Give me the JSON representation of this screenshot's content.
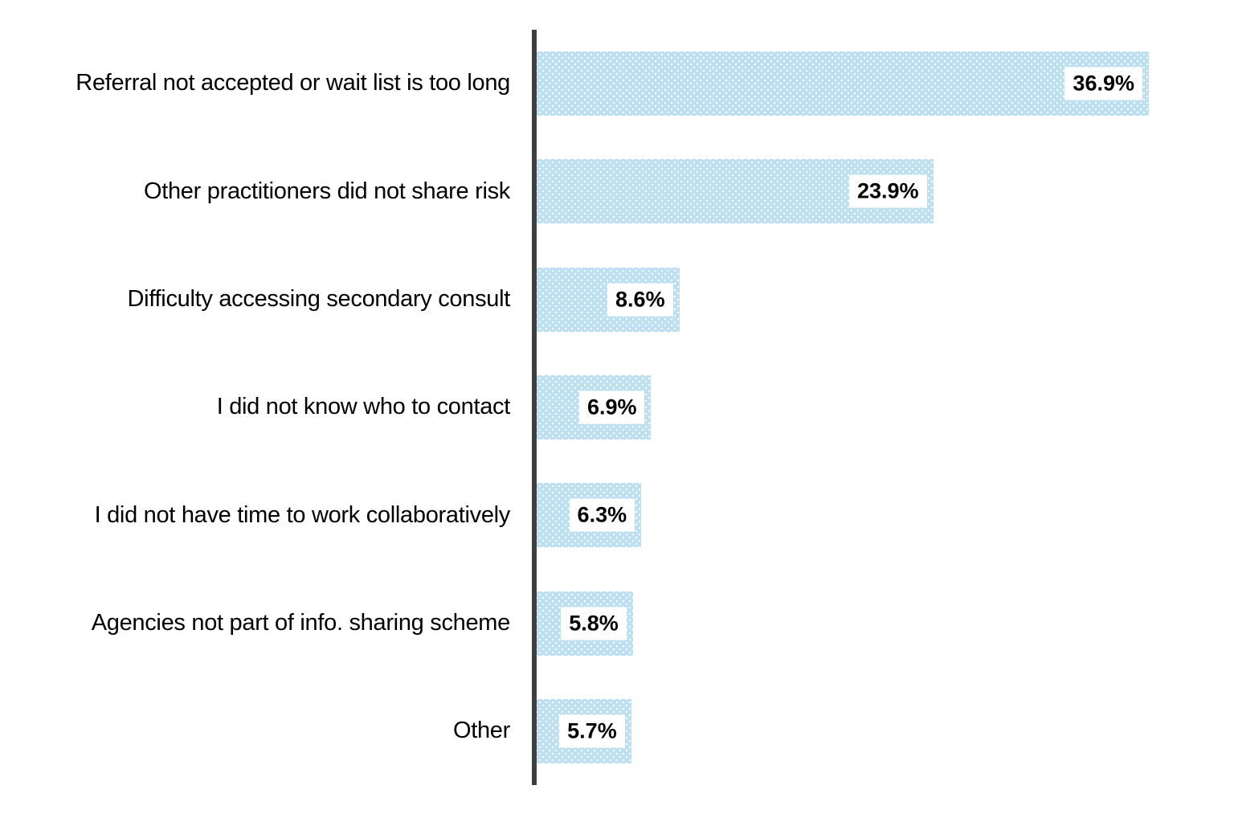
{
  "chart_data": {
    "type": "bar",
    "orientation": "horizontal",
    "title": "",
    "xlabel": "",
    "ylabel": "",
    "categories": [
      "Referral not accepted or wait list is too long",
      "Other practitioners did not share risk",
      "Difficulty accessing secondary consult",
      "I did not know who to contact",
      "I did not have time to work collaboratively",
      "Agencies not part of info. sharing scheme",
      "Other"
    ],
    "values": [
      36.9,
      23.9,
      8.6,
      6.9,
      6.3,
      5.8,
      5.7
    ],
    "value_labels": [
      "36.9%",
      "23.9%",
      "8.6%",
      "6.9%",
      "6.3%",
      "5.8%",
      "5.7%"
    ],
    "xlim": [
      0,
      40
    ],
    "grid": false,
    "legend": false,
    "bar_color": "#bce0f2",
    "bar_pattern": "white-dot-grid",
    "value_label_style": "inside-end-white-box",
    "axis_line_color": "#3f3f3f",
    "label_text_color": "#000000"
  }
}
